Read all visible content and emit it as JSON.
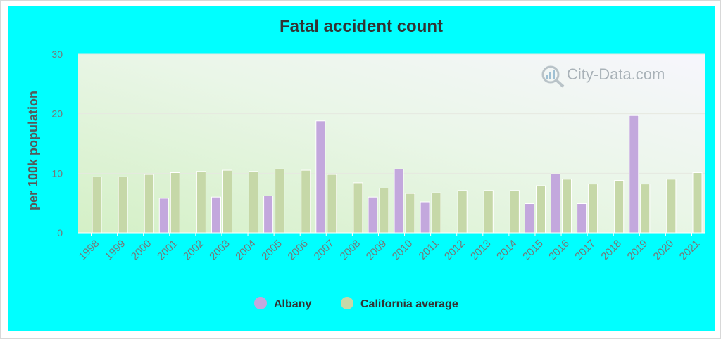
{
  "chart_data": {
    "type": "bar",
    "title": "Fatal accident count",
    "ylabel": "per 100k population",
    "xlabel": "",
    "ylim": [
      0,
      30
    ],
    "yticks": [
      0,
      10,
      20,
      30
    ],
    "grid": true,
    "legend_position": "bottom",
    "categories": [
      "1998",
      "1999",
      "2000",
      "2001",
      "2002",
      "2003",
      "2004",
      "2005",
      "2006",
      "2007",
      "2008",
      "2009",
      "2010",
      "2011",
      "2012",
      "2013",
      "2014",
      "2015",
      "2016",
      "2017",
      "2018",
      "2019",
      "2020",
      "2021"
    ],
    "series": [
      {
        "name": "Albany",
        "color": "#c3a8dd",
        "values": [
          null,
          null,
          null,
          5.8,
          null,
          6.0,
          null,
          6.2,
          null,
          18.8,
          null,
          6.0,
          10.7,
          5.2,
          null,
          null,
          null,
          4.9,
          9.9,
          4.9,
          null,
          19.7,
          null,
          null
        ]
      },
      {
        "name": "California average",
        "color": "#c6d8a8",
        "values": [
          9.4,
          9.4,
          9.8,
          10.1,
          10.3,
          10.5,
          10.3,
          10.7,
          10.5,
          9.8,
          8.4,
          7.5,
          6.6,
          6.7,
          7.1,
          7.1,
          7.1,
          7.9,
          9.0,
          8.2,
          8.8,
          8.2,
          9.0,
          10.1
        ]
      }
    ],
    "watermark": "City-Data.com"
  }
}
